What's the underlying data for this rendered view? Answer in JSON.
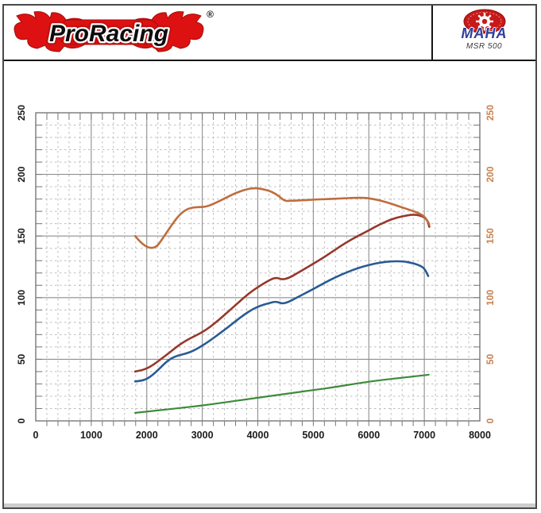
{
  "header": {
    "brand": "ProRacing",
    "registered": "®",
    "device": {
      "name": "MAHA",
      "model": "MSR 500"
    }
  },
  "colors": {
    "flame_red": "#dd1111",
    "logo_text": "#0d0d0d",
    "maha_red": "#c81919",
    "maha_blue": "#2e3e9b",
    "axis_label_left": "#1a1a1a",
    "axis_label_right": "#c8824f",
    "grid_major": "#8e8e8e",
    "grid_minor": "#bcbcbc",
    "plot_border": "#777777"
  },
  "chart_data": {
    "type": "line",
    "title": "",
    "xlabel": "",
    "ylabel": "",
    "legend": "none",
    "grid": true,
    "x_range": [
      0,
      8000
    ],
    "y_range": [
      0,
      250
    ],
    "x_major": 1000,
    "x_minor": 200,
    "y_major": 50,
    "y_minor": 10,
    "x_ticks": [
      "0",
      "1000",
      "2000",
      "3000",
      "4000",
      "5000",
      "6000",
      "7000",
      "8000"
    ],
    "y_ticks_left": [
      "0",
      "50",
      "100",
      "150",
      "200",
      "250"
    ],
    "y_ticks_right": [
      "0",
      "50",
      "100",
      "150",
      "200",
      "250"
    ],
    "series": [
      {
        "name": "drag-power-curve-green",
        "color": "#3e8a3c",
        "width": 2.2,
        "points": [
          [
            1790,
            6.5
          ],
          [
            2200,
            8.5
          ],
          [
            2600,
            10.5
          ],
          [
            3000,
            12.5
          ],
          [
            3400,
            15
          ],
          [
            3800,
            17.5
          ],
          [
            4200,
            20
          ],
          [
            4600,
            22.5
          ],
          [
            5000,
            25
          ],
          [
            5400,
            27.5
          ],
          [
            5800,
            30.5
          ],
          [
            6200,
            33
          ],
          [
            6600,
            35
          ],
          [
            7000,
            37
          ],
          [
            7080,
            37.5
          ]
        ]
      },
      {
        "name": "power-stock-curve-blue",
        "color": "#2a5b94",
        "width": 2.6,
        "points": [
          [
            1790,
            32
          ],
          [
            1900,
            32.5
          ],
          [
            2000,
            34
          ],
          [
            2100,
            37
          ],
          [
            2220,
            42
          ],
          [
            2330,
            47
          ],
          [
            2430,
            50.5
          ],
          [
            2550,
            53
          ],
          [
            2700,
            54.5
          ],
          [
            2850,
            57
          ],
          [
            3000,
            61
          ],
          [
            3150,
            65.5
          ],
          [
            3300,
            70.5
          ],
          [
            3450,
            75.5
          ],
          [
            3600,
            81
          ],
          [
            3750,
            86
          ],
          [
            3900,
            90.5
          ],
          [
            4050,
            93.5
          ],
          [
            4200,
            95.5
          ],
          [
            4330,
            97
          ],
          [
            4440,
            95
          ],
          [
            4560,
            96.5
          ],
          [
            4700,
            100
          ],
          [
            4850,
            103.5
          ],
          [
            5000,
            107
          ],
          [
            5200,
            112
          ],
          [
            5400,
            116.5
          ],
          [
            5600,
            120.5
          ],
          [
            5800,
            124
          ],
          [
            6000,
            126.5
          ],
          [
            6200,
            128.5
          ],
          [
            6400,
            129.5
          ],
          [
            6600,
            129.5
          ],
          [
            6750,
            128.5
          ],
          [
            6900,
            126.5
          ],
          [
            7000,
            124
          ],
          [
            7070,
            117.5
          ]
        ]
      },
      {
        "name": "power-tuned-curve-red",
        "color": "#96382c",
        "width": 2.6,
        "points": [
          [
            1790,
            40
          ],
          [
            1900,
            41
          ],
          [
            2000,
            42.5
          ],
          [
            2120,
            45.5
          ],
          [
            2250,
            50
          ],
          [
            2400,
            55
          ],
          [
            2550,
            60.5
          ],
          [
            2700,
            65
          ],
          [
            2850,
            68.5
          ],
          [
            3000,
            72
          ],
          [
            3150,
            76.5
          ],
          [
            3300,
            82
          ],
          [
            3450,
            88
          ],
          [
            3600,
            94
          ],
          [
            3750,
            100
          ],
          [
            3900,
            105.5
          ],
          [
            4050,
            110
          ],
          [
            4200,
            114
          ],
          [
            4330,
            116.5
          ],
          [
            4440,
            114.5
          ],
          [
            4560,
            116
          ],
          [
            4700,
            119.5
          ],
          [
            4850,
            123.5
          ],
          [
            5000,
            127.5
          ],
          [
            5200,
            133
          ],
          [
            5400,
            139
          ],
          [
            5600,
            145
          ],
          [
            5800,
            150
          ],
          [
            6000,
            154.5
          ],
          [
            6200,
            159.5
          ],
          [
            6400,
            163.5
          ],
          [
            6600,
            166
          ],
          [
            6800,
            167.5
          ],
          [
            6950,
            166.5
          ],
          [
            7050,
            163.5
          ],
          [
            7090,
            157.5
          ]
        ]
      },
      {
        "name": "torque-curve-orange",
        "color": "#bf6d3e",
        "width": 2.6,
        "points": [
          [
            1790,
            150
          ],
          [
            1900,
            144
          ],
          [
            2050,
            140
          ],
          [
            2180,
            141
          ],
          [
            2300,
            149
          ],
          [
            2450,
            159
          ],
          [
            2600,
            168
          ],
          [
            2750,
            172.5
          ],
          [
            2900,
            173.5
          ],
          [
            3050,
            173.5
          ],
          [
            3200,
            176
          ],
          [
            3400,
            180.5
          ],
          [
            3600,
            185
          ],
          [
            3800,
            188
          ],
          [
            3950,
            189
          ],
          [
            4100,
            188
          ],
          [
            4250,
            186
          ],
          [
            4380,
            182.5
          ],
          [
            4480,
            178.5
          ],
          [
            4600,
            178.5
          ],
          [
            4800,
            179
          ],
          [
            5000,
            179.5
          ],
          [
            5250,
            180
          ],
          [
            5500,
            180.5
          ],
          [
            5750,
            181
          ],
          [
            5950,
            181
          ],
          [
            6150,
            179.5
          ],
          [
            6350,
            177
          ],
          [
            6550,
            174
          ],
          [
            6750,
            171
          ],
          [
            6900,
            168.5
          ],
          [
            7000,
            166
          ],
          [
            7060,
            162
          ],
          [
            7090,
            159.5
          ]
        ]
      }
    ]
  }
}
